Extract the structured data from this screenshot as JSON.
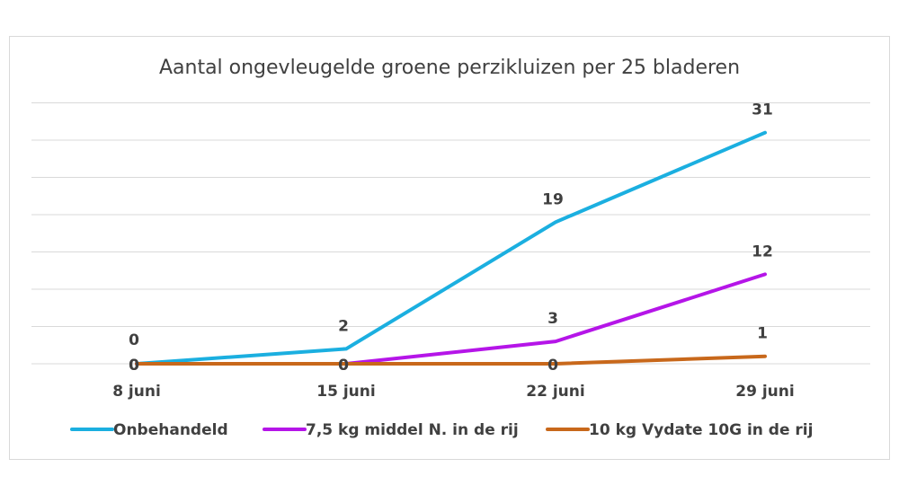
{
  "chart_data": {
    "type": "line",
    "title": "Aantal ongevleugelde groene perzikluizen per 25 bladeren",
    "xlabel": "",
    "ylabel": "",
    "categories": [
      "8 juni",
      "15 juni",
      "22 juni",
      "29 juni"
    ],
    "ylim": [
      0,
      35
    ],
    "grid": true,
    "legend": "bottom",
    "series": [
      {
        "name": "Onbehandeld",
        "values": [
          0,
          2,
          19,
          31
        ],
        "labels": [
          "0",
          "2",
          "19",
          "31"
        ],
        "color": "#1bafe0"
      },
      {
        "name": "7,5 kg middel N. in de rij",
        "values": [
          0,
          0,
          3,
          12
        ],
        "labels": [
          "0",
          "0",
          "3",
          "12"
        ],
        "color": "#b515e8"
      },
      {
        "name": "10 kg Vydate 10G in de rij",
        "values": [
          0,
          0,
          0,
          1
        ],
        "labels": [
          "0",
          "0",
          "0",
          "1"
        ],
        "color": "#c8681b"
      }
    ]
  }
}
